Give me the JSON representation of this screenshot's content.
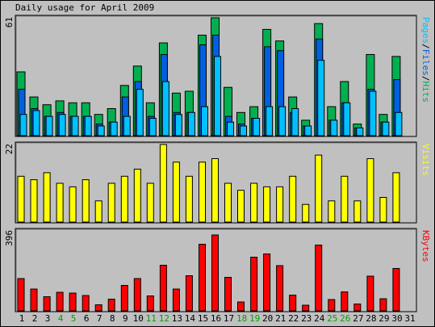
{
  "colors": {
    "background": "#c0c0c0",
    "panel": "#c0c0c0",
    "hits": "#00b050",
    "files": "#0060e0",
    "pages": "#00c0ff",
    "visits": "#ffff00",
    "kbytes": "#ff0000",
    "weekday": "#000000",
    "weekend": "#00a000"
  },
  "chart_data": {
    "type": "bar",
    "title": "Daily usage for April 2009",
    "days": [
      "1",
      "2",
      "3",
      "4",
      "5",
      "6",
      "7",
      "8",
      "9",
      "10",
      "11",
      "12",
      "13",
      "14",
      "15",
      "16",
      "17",
      "18",
      "19",
      "20",
      "21",
      "22",
      "23",
      "24",
      "25",
      "26",
      "27",
      "28",
      "29",
      "30",
      "31"
    ],
    "weekend_days": [
      "4",
      "5",
      "11",
      "12",
      "18",
      "19",
      "25",
      "26"
    ],
    "panels": [
      {
        "id": "hits-files-pages",
        "ymax": 61,
        "ymax_label": "61",
        "legend": [
          {
            "text": "Pages",
            "color": "#00c0ff"
          },
          {
            "text": "/",
            "color": "#000000"
          },
          {
            "text": "Files",
            "color": "#0060e0"
          },
          {
            "text": "/",
            "color": "#000000"
          },
          {
            "text": "Hits",
            "color": "#00b050"
          }
        ],
        "series": [
          {
            "name": "Hits",
            "color": "#00b050",
            "values": [
              33,
              20,
              16,
              18,
              17,
              17,
              11,
              14,
              26,
              36,
              17,
              48,
              22,
              23,
              52,
              61,
              25,
              12,
              15,
              55,
              49,
              20,
              8,
              58,
              15,
              28,
              6,
              42,
              11,
              41,
              0
            ]
          },
          {
            "name": "Files",
            "color": "#0060e0",
            "values": [
              24,
              14,
              10,
              12,
              10,
              10,
              6,
              7,
              20,
              28,
              10,
              42,
              12,
              12,
              47,
              52,
              10,
              6,
              9,
              46,
              44,
              12,
              5,
              50,
              8,
              17,
              4,
              24,
              7,
              29,
              0
            ]
          },
          {
            "name": "Pages",
            "color": "#00c0ff",
            "values": [
              11,
              13,
              10,
              11,
              10,
              10,
              5,
              7,
              10,
              24,
              9,
              28,
              11,
              12,
              15,
              41,
              7,
              5,
              9,
              15,
              15,
              14,
              5,
              39,
              8,
              17,
              4,
              23,
              7,
              12,
              0
            ]
          }
        ]
      },
      {
        "id": "visits",
        "ymax": 22,
        "ymax_label": "22",
        "legend": [
          {
            "text": "Visits",
            "color": "#ffff00"
          }
        ],
        "series": [
          {
            "name": "Visits",
            "color": "#ffff00",
            "values": [
              13,
              12,
              14,
              11,
              10,
              12,
              6,
              11,
              13,
              15,
              11,
              22,
              17,
              13,
              17,
              18,
              11,
              9,
              11,
              10,
              10,
              13,
              5,
              19,
              6,
              13,
              6,
              18,
              7,
              14,
              0
            ]
          }
        ]
      },
      {
        "id": "kbytes",
        "ymax": 396,
        "ymax_label": "396",
        "legend": [
          {
            "text": "KBytes",
            "color": "#ff0000"
          }
        ],
        "series": [
          {
            "name": "KBytes",
            "color": "#ff0000",
            "values": [
              160,
              108,
              70,
              92,
              88,
              76,
              30,
              58,
              126,
              160,
              74,
              226,
              108,
              174,
              330,
              376,
              166,
              44,
              266,
              282,
              224,
              78,
              28,
              326,
              56,
              94,
              34,
              172,
              60,
              210,
              0
            ]
          }
        ]
      }
    ]
  }
}
